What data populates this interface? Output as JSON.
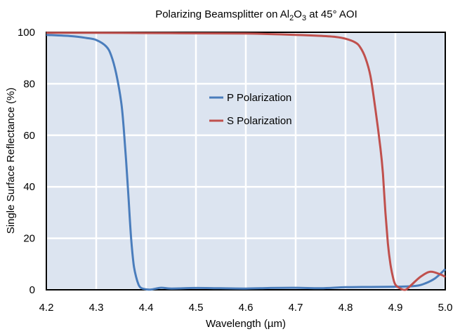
{
  "chart_data": {
    "type": "line",
    "title": {
      "main": "Polarizing Beamsplitter on Al",
      "sub1": "2",
      "mid": "O",
      "sub2": "3",
      "tail": " at 45° AOI"
    },
    "xlabel": "Wavelength (µm)",
    "ylabel": "Single Surface Reflectance (%)",
    "xlim": [
      4.2,
      5.0
    ],
    "ylim": [
      0,
      100
    ],
    "xticks": [
      "4.2",
      "4.3",
      "4.4",
      "4.5",
      "4.6",
      "4.7",
      "4.8",
      "4.9",
      "5.0"
    ],
    "yticks": [
      "0",
      "20",
      "40",
      "60",
      "80",
      "100"
    ],
    "grid": true,
    "legend_position": "center-left",
    "series": [
      {
        "name": "P Polarization",
        "color": "#4a7dbc",
        "points": [
          [
            4.2,
            99.0
          ],
          [
            4.25,
            98.5
          ],
          [
            4.28,
            97.8
          ],
          [
            4.3,
            97.0
          ],
          [
            4.32,
            94.5
          ],
          [
            4.33,
            91
          ],
          [
            4.34,
            84
          ],
          [
            4.35,
            73
          ],
          [
            4.355,
            63
          ],
          [
            4.36,
            50
          ],
          [
            4.365,
            35
          ],
          [
            4.37,
            20
          ],
          [
            4.375,
            10
          ],
          [
            4.38,
            5
          ],
          [
            4.385,
            2
          ],
          [
            4.39,
            0.7
          ],
          [
            4.4,
            0.2
          ],
          [
            4.41,
            0.1
          ],
          [
            4.43,
            0.8
          ],
          [
            4.45,
            0.5
          ],
          [
            4.5,
            0.7
          ],
          [
            4.55,
            0.6
          ],
          [
            4.6,
            0.5
          ],
          [
            4.65,
            0.7
          ],
          [
            4.7,
            0.8
          ],
          [
            4.75,
            0.6
          ],
          [
            4.8,
            1.0
          ],
          [
            4.85,
            1.1
          ],
          [
            4.9,
            1.2
          ],
          [
            4.94,
            1.5
          ],
          [
            4.96,
            2.5
          ],
          [
            4.98,
            4.5
          ],
          [
            5.0,
            8.0
          ]
        ]
      },
      {
        "name": "S Polarization",
        "color": "#c0504d",
        "points": [
          [
            4.2,
            99.8
          ],
          [
            4.3,
            99.8
          ],
          [
            4.4,
            99.7
          ],
          [
            4.5,
            99.6
          ],
          [
            4.6,
            99.5
          ],
          [
            4.7,
            99.0
          ],
          [
            4.75,
            98.6
          ],
          [
            4.78,
            98.2
          ],
          [
            4.8,
            97.5
          ],
          [
            4.82,
            96
          ],
          [
            4.83,
            94
          ],
          [
            4.84,
            90
          ],
          [
            4.85,
            83
          ],
          [
            4.86,
            70
          ],
          [
            4.87,
            55
          ],
          [
            4.875,
            45
          ],
          [
            4.88,
            30
          ],
          [
            4.885,
            18
          ],
          [
            4.89,
            10
          ],
          [
            4.895,
            5
          ],
          [
            4.9,
            2.0
          ],
          [
            4.91,
            0.5
          ],
          [
            4.92,
            0
          ],
          [
            4.93,
            1.5
          ],
          [
            4.95,
            5.0
          ],
          [
            4.97,
            7.0
          ],
          [
            4.99,
            6.0
          ],
          [
            5.0,
            5.0
          ]
        ]
      }
    ]
  }
}
